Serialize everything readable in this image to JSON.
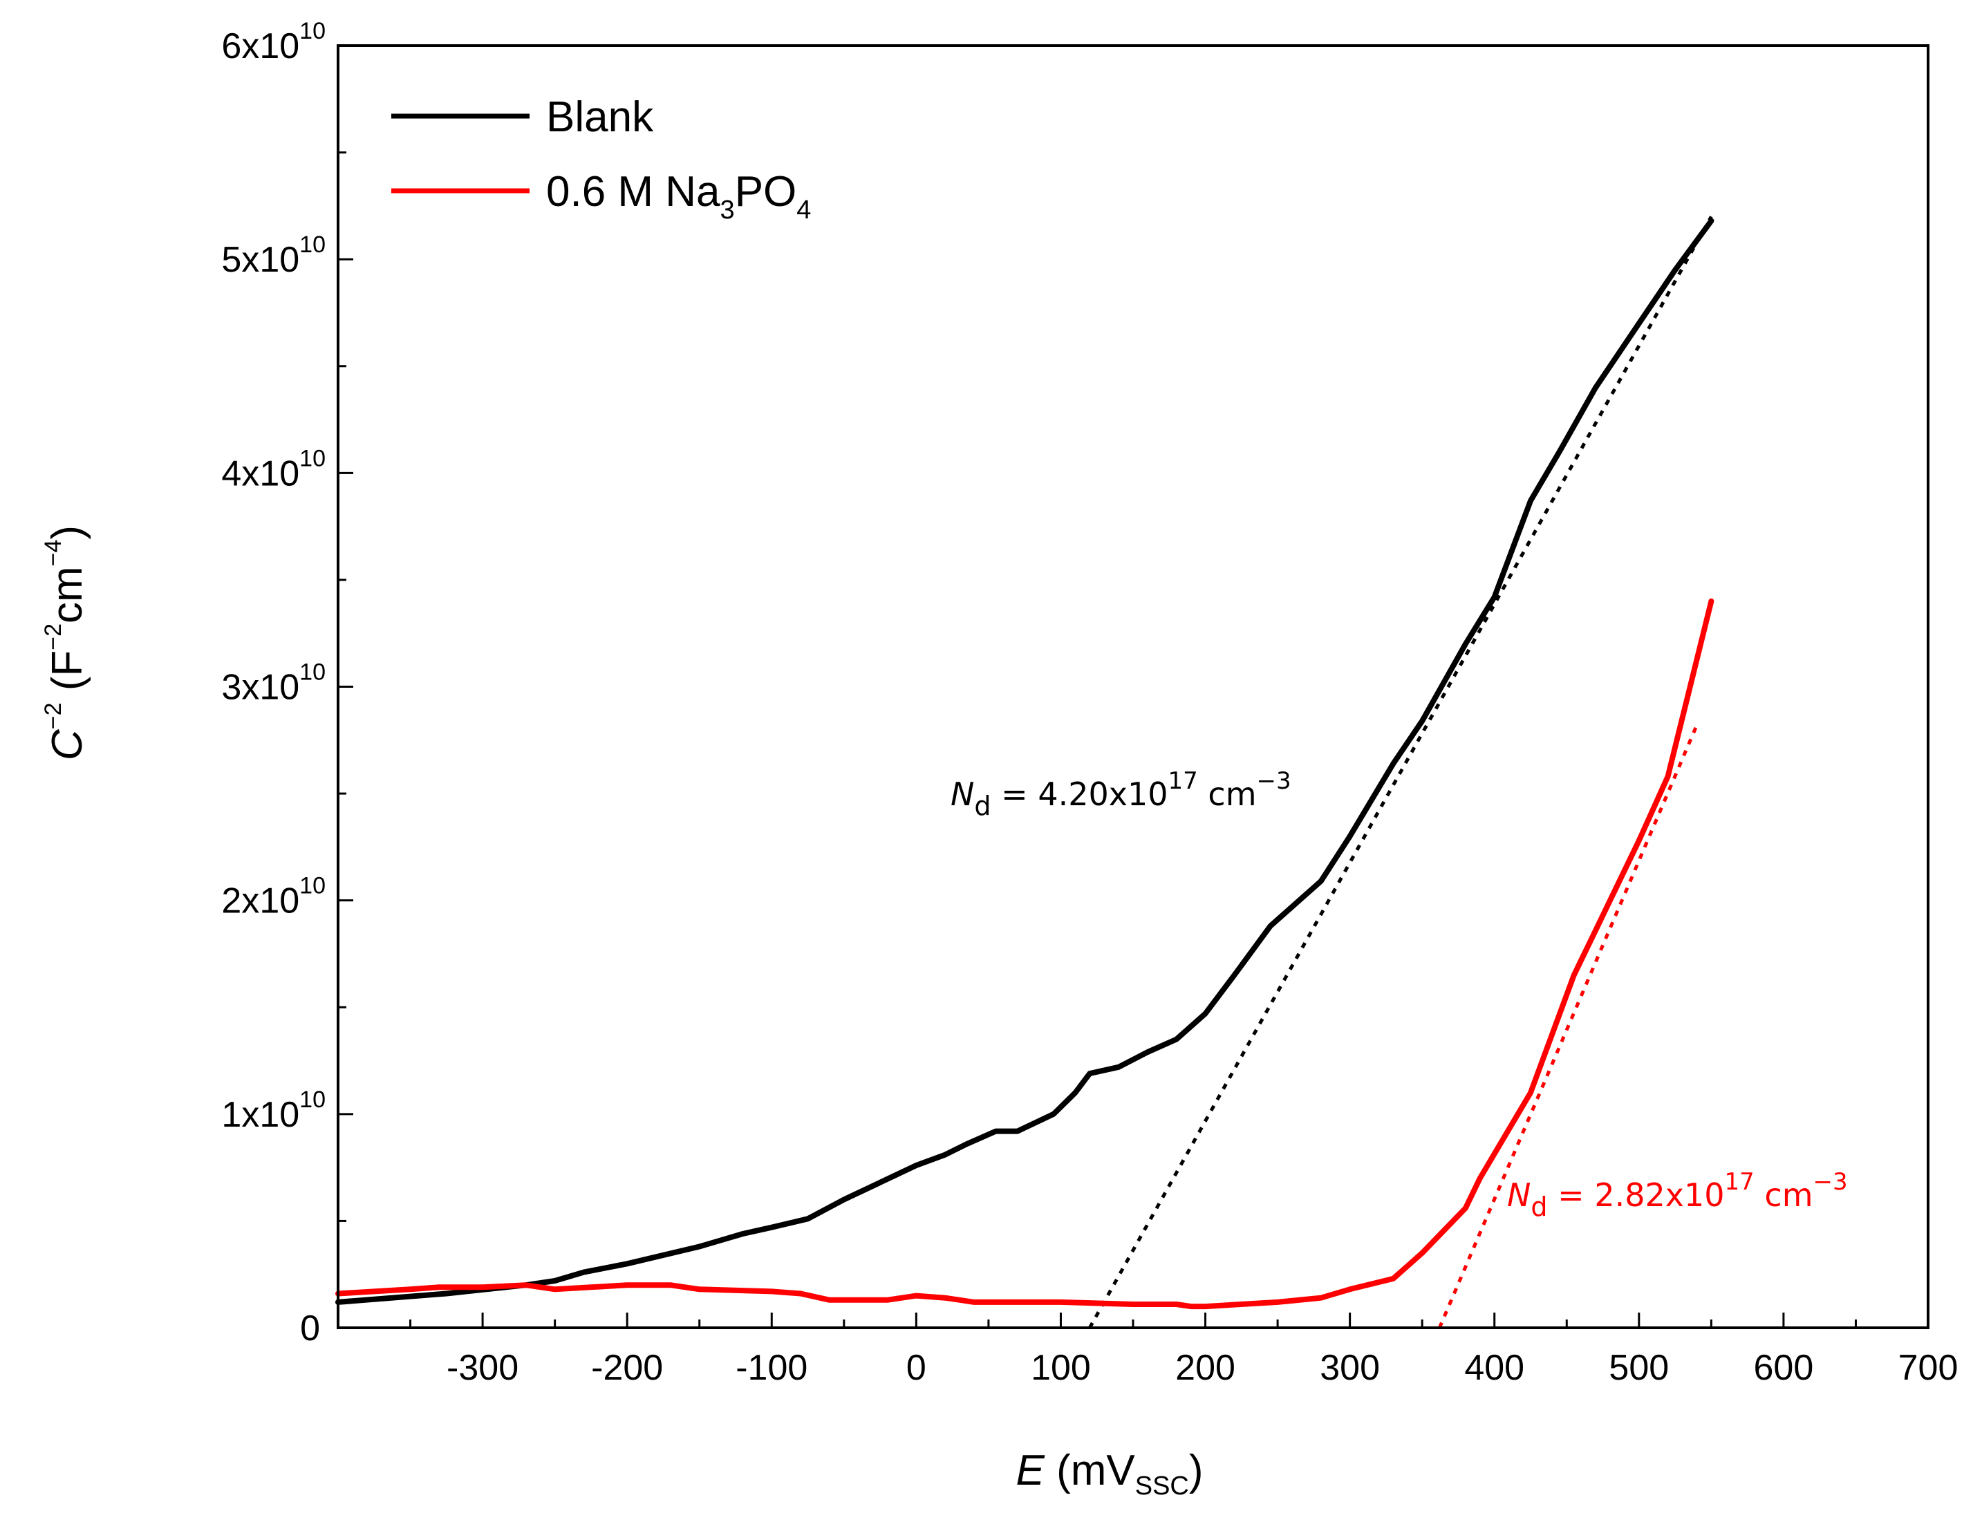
{
  "chart_data": {
    "type": "line",
    "title": "",
    "xlabel": {
      "var": "E",
      "unit_prefix": " (mV",
      "unit_sub": "SSC",
      "unit_suffix": ")"
    },
    "ylabel": {
      "c": "C",
      "c_exp": "−2",
      "open": " (F",
      "f_exp": "−2",
      "mid": "cm",
      "cm_exp": "−4",
      "close": ")"
    },
    "xlim": [
      -400,
      700
    ],
    "ylim": [
      0,
      60000000000.0
    ],
    "xticks": [
      {
        "value": -300,
        "label": "-300"
      },
      {
        "value": -200,
        "label": "-200"
      },
      {
        "value": -100,
        "label": "-100"
      },
      {
        "value": 0,
        "label": "0"
      },
      {
        "value": 100,
        "label": "100"
      },
      {
        "value": 200,
        "label": "200"
      },
      {
        "value": 300,
        "label": "300"
      },
      {
        "value": 400,
        "label": "400"
      },
      {
        "value": 500,
        "label": "500"
      },
      {
        "value": 600,
        "label": "600"
      },
      {
        "value": 700,
        "label": "700"
      }
    ],
    "yticks": [
      {
        "value": 0,
        "label": "0",
        "exp": ""
      },
      {
        "value": 10000000000.0,
        "label": "1x10",
        "exp": "10"
      },
      {
        "value": 20000000000.0,
        "label": "2x10",
        "exp": "10"
      },
      {
        "value": 30000000000.0,
        "label": "3x10",
        "exp": "10"
      },
      {
        "value": 40000000000.0,
        "label": "4x10",
        "exp": "10"
      },
      {
        "value": 50000000000.0,
        "label": "5x10",
        "exp": "10"
      },
      {
        "value": 60000000000.0,
        "label": "6x10",
        "exp": "10"
      }
    ],
    "series": [
      {
        "name": "Blank",
        "color": "#000000",
        "x": [
          -400,
          -325,
          -270,
          -250,
          -230,
          -200,
          -150,
          -130,
          -120,
          -100,
          -75,
          -50,
          -25,
          0,
          20,
          35,
          55,
          70,
          95,
          110,
          120,
          140,
          160,
          180,
          200,
          220,
          245,
          280,
          300,
          330,
          350,
          380,
          400,
          425,
          445,
          470,
          500,
          525,
          550
        ],
        "values": [
          1200000000.0,
          1600000000.0,
          2000000000.0,
          2200000000.0,
          2600000000.0,
          3000000000.0,
          3800000000.0,
          4200000000.0,
          4400000000.0,
          4700000000.0,
          5100000000.0,
          6000000000.0,
          6800000000.0,
          7600000000.0,
          8100000000.0,
          8600000000.0,
          9200000000.0,
          9200000000.0,
          10000000000.0,
          11000000000.0,
          11900000000.0,
          12200000000.0,
          12900000000.0,
          13500000000.0,
          14700000000.0,
          16500000000.0,
          18800000000.0,
          20900000000.0,
          23000000000.0,
          26400000000.0,
          28400000000.0,
          32000000000.0,
          34200000000.0,
          38700000000.0,
          41000000000.0,
          44000000000.0,
          47000000000.0,
          49500000000.0,
          51800000000.0
        ]
      },
      {
        "name": "0.6 M Na3PO4",
        "legend_main": "0.6 M Na",
        "legend_sub1": "3",
        "legend_mid": "PO",
        "legend_sub2": "4",
        "color": "#ff0000",
        "x": [
          -400,
          -350,
          -330,
          -300,
          -270,
          -250,
          -200,
          -170,
          -150,
          -100,
          -80,
          -60,
          -55,
          -20,
          0,
          20,
          40,
          60,
          100,
          150,
          180,
          190,
          200,
          250,
          280,
          300,
          330,
          350,
          380,
          390,
          425,
          455,
          470,
          500,
          520,
          550
        ],
        "values": [
          1600000000.0,
          1800000000.0,
          1900000000.0,
          1900000000.0,
          2000000000.0,
          1800000000.0,
          2000000000.0,
          2000000000.0,
          1800000000.0,
          1700000000.0,
          1600000000.0,
          1300000000.0,
          1300000000.0,
          1300000000.0,
          1500000000.0,
          1400000000.0,
          1200000000.0,
          1200000000.0,
          1200000000.0,
          1100000000.0,
          1100000000.0,
          1000000000.0,
          1000000000.0,
          1200000000.0,
          1400000000.0,
          1800000000.0,
          2300000000.0,
          3500000000.0,
          5600000000.0,
          7000000000.0,
          11000000000.0,
          16500000000.0,
          18600000000.0,
          22800000000.0,
          25800000000.0,
          34000000000.0
        ]
      }
    ],
    "fits": [
      {
        "color": "#000000",
        "x": [
          120,
          550
        ],
        "values": [
          0,
          52000000000.0
        ]
      },
      {
        "color": "#ff0000",
        "x": [
          362,
          540
        ],
        "values": [
          0,
          28200000000.0
        ]
      }
    ],
    "annotations": [
      {
        "var": "N",
        "sub": "d",
        "text": " = 4.20x10",
        "exp1": "17",
        "unit": " cm",
        "exp2": "−3",
        "color": "#000000"
      },
      {
        "var": "N",
        "sub": "d",
        "text": " = 2.82x10",
        "exp1": "17",
        "unit": " cm",
        "exp2": "−3",
        "color": "#ff0000"
      }
    ],
    "legend_position": "top-left"
  }
}
